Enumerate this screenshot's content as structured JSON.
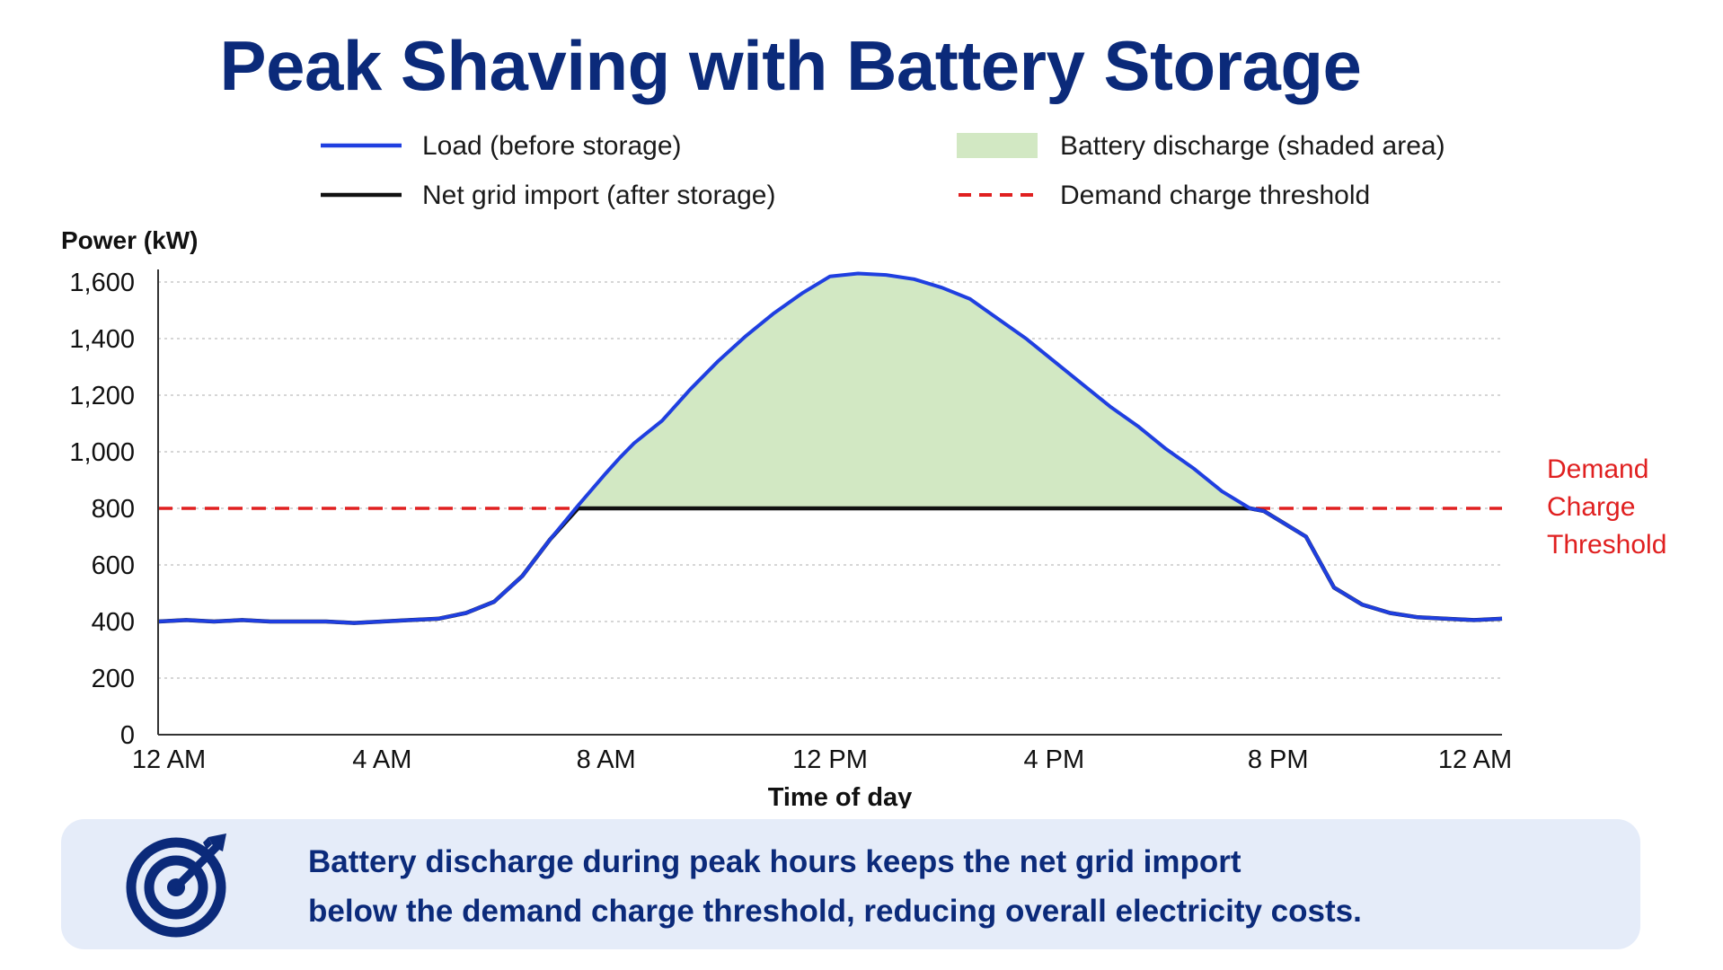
{
  "chart_data": {
    "type": "line",
    "title": "Peak Shaving with Battery Storage",
    "ylabel": "Power (kW)",
    "xlabel": "Time of day",
    "x_ticks": [
      "12 AM",
      "4 AM",
      "8 AM",
      "12 PM",
      "4 PM",
      "8 PM",
      "12 AM"
    ],
    "x_tick_hours": [
      0,
      4,
      8,
      12,
      16,
      20,
      24
    ],
    "xlim": [
      0,
      24
    ],
    "y_ticks": [
      "0",
      "200",
      "400",
      "600",
      "800",
      "1,000",
      "1,200",
      "1,400",
      "1,600"
    ],
    "y_tick_values": [
      0,
      200,
      400,
      600,
      800,
      1000,
      1200,
      1400,
      1600
    ],
    "ylim": [
      0,
      1650
    ],
    "grid": "horizontal dotted",
    "legend_position": "top",
    "threshold": 800,
    "threshold_label": [
      "Demand",
      "Charge",
      "Threshold"
    ],
    "x": [
      0,
      0.5,
      1,
      1.5,
      2,
      2.5,
      3,
      3.5,
      4,
      4.5,
      5,
      5.5,
      6,
      6.5,
      7,
      7.5,
      8,
      8.25,
      8.5,
      9,
      9.5,
      10,
      10.5,
      11,
      11.5,
      12,
      12.5,
      13,
      13.5,
      14,
      14.5,
      15,
      15.5,
      16,
      16.5,
      17,
      17.5,
      18,
      18.5,
      19,
      19.5,
      19.75,
      20,
      20.5,
      21,
      21.5,
      22,
      22.5,
      23,
      23.5,
      24
    ],
    "series": [
      {
        "name": "Load (before storage)",
        "color": "#1f3fe0",
        "values": [
          400,
          405,
          400,
          405,
          400,
          400,
          400,
          395,
          400,
          405,
          410,
          430,
          470,
          560,
          690,
          810,
          925,
          980,
          1030,
          1110,
          1220,
          1320,
          1410,
          1490,
          1560,
          1620,
          1630,
          1625,
          1610,
          1580,
          1540,
          1470,
          1400,
          1320,
          1240,
          1160,
          1090,
          1010,
          940,
          860,
          800,
          790,
          760,
          700,
          520,
          460,
          430,
          415,
          410,
          405,
          410
        ]
      },
      {
        "name": "Net grid import (after storage)",
        "color": "#111111",
        "values": [
          400,
          405,
          400,
          405,
          400,
          400,
          400,
          395,
          400,
          405,
          410,
          430,
          470,
          560,
          690,
          800,
          800,
          800,
          800,
          800,
          800,
          800,
          800,
          800,
          800,
          800,
          800,
          800,
          800,
          800,
          800,
          800,
          800,
          800,
          800,
          800,
          800,
          800,
          800,
          800,
          800,
          790,
          760,
          700,
          520,
          460,
          430,
          415,
          410,
          405,
          410
        ]
      }
    ],
    "legend": [
      {
        "label": "Load (before storage)",
        "kind": "line",
        "color": "#1f3fe0"
      },
      {
        "label": "Net grid import (after storage)",
        "kind": "line",
        "color": "#111111"
      },
      {
        "label": "Battery discharge (shaded area)",
        "kind": "area",
        "color": "#d2e8c3"
      },
      {
        "label": "Demand charge threshold",
        "kind": "dashed",
        "color": "#e02020"
      }
    ]
  },
  "callout": {
    "icon": "target-icon",
    "line1": "Battery discharge during peak hours keeps the net grid import",
    "line2": "below the demand charge threshold, reducing overall electricity costs."
  },
  "colors": {
    "title": "#0b2a7a",
    "shade": "#d2e8c3",
    "threshold": "#e02020",
    "callout_bg": "#e5ecf9"
  }
}
